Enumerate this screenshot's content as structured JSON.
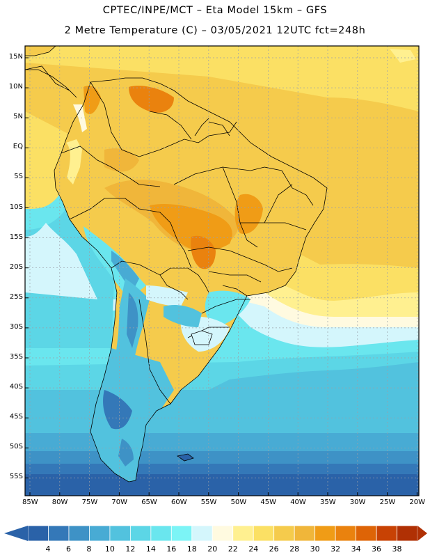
{
  "header": {
    "line1": "CPTEC/INPE/MCT –  Eta Model 15km – GFS",
    "line2": "2 Metre Temperature (C) – 03/05/2021 12UTC fct=248h"
  },
  "axes": {
    "lat_labels": [
      "15N",
      "10N",
      "5N",
      "EQ",
      "5S",
      "10S",
      "15S",
      "20S",
      "25S",
      "30S",
      "35S",
      "40S",
      "45S",
      "50S",
      "55S"
    ],
    "lon_labels": [
      "85W",
      "80W",
      "75W",
      "70W",
      "65W",
      "60W",
      "55W",
      "50W",
      "45W",
      "40W",
      "35W",
      "30W",
      "25W",
      "20W"
    ]
  },
  "colorbar": {
    "labels": [
      "4",
      "6",
      "8",
      "10",
      "12",
      "14",
      "16",
      "18",
      "20",
      "22",
      "24",
      "26",
      "28",
      "30",
      "32",
      "34",
      "36",
      "38"
    ],
    "colors": [
      "#2a62a8",
      "#3478b8",
      "#3e92c6",
      "#48abd4",
      "#52c2de",
      "#5cd6e6",
      "#6ae6ee",
      "#7cf4f6",
      "#d4f6fc",
      "#fffae0",
      "#fff090",
      "#fbe064",
      "#f5cb4c",
      "#f0b63a",
      "#f09c16",
      "#ea820e",
      "#de6406",
      "#c84204",
      "#b03004"
    ],
    "under_color": "#2a62a8",
    "over_color": "#b03004"
  }
}
